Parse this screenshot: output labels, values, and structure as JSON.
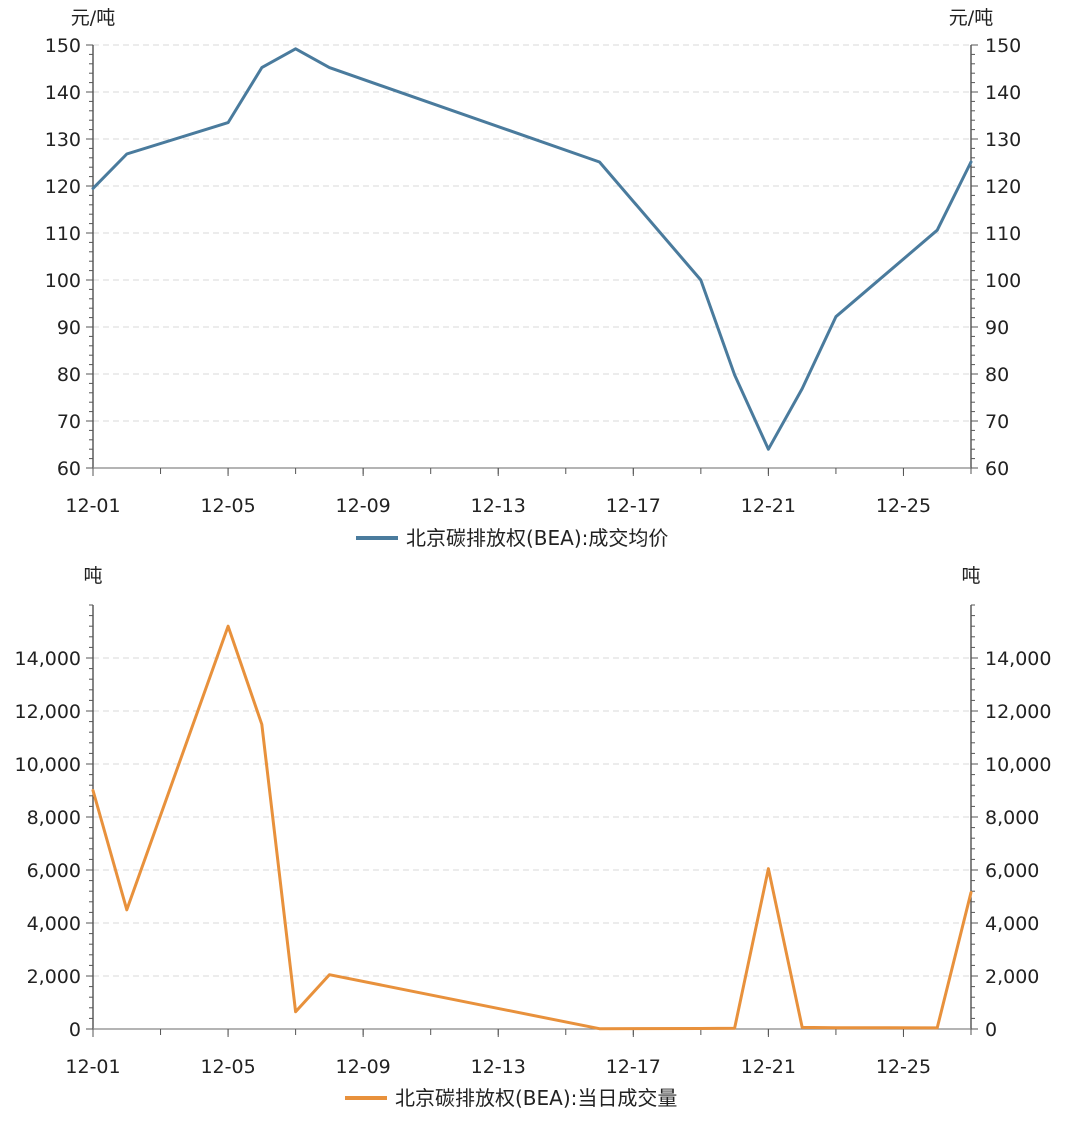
{
  "chart_data": [
    {
      "type": "line",
      "y_unit_left": "元/吨",
      "y_unit_right": "元/吨",
      "x": [
        "12-01",
        "12-02",
        "12-05",
        "12-06",
        "12-07",
        "12-08",
        "12-16",
        "12-19",
        "12-20",
        "12-21",
        "12-22",
        "12-23",
        "12-26",
        "12-27"
      ],
      "x_ticks": [
        "12-01",
        "12-05",
        "12-09",
        "12-13",
        "12-17",
        "12-21",
        "12-25"
      ],
      "x_range": [
        "12-01",
        "12-27"
      ],
      "ylim": [
        60,
        150
      ],
      "y_ticks": [
        "60",
        "70",
        "80",
        "90",
        "100",
        "110",
        "120",
        "130",
        "140",
        "150"
      ],
      "grid": true,
      "legend_position": "bottom-center",
      "series": [
        {
          "name": "北京碳排放权(BEA):成交均价",
          "color": "#4a7b9d",
          "values": [
            119.5,
            126.8,
            133.5,
            145.2,
            149.2,
            145.2,
            125.1,
            100.0,
            79.8,
            64.0,
            76.9,
            92.2,
            110.6,
            125.1
          ]
        }
      ]
    },
    {
      "type": "line",
      "y_unit_left": "吨",
      "y_unit_right": "吨",
      "x": [
        "12-01",
        "12-02",
        "12-05",
        "12-06",
        "12-07",
        "12-08",
        "12-16",
        "12-19",
        "12-20",
        "12-21",
        "12-22",
        "12-23",
        "12-26",
        "12-27"
      ],
      "x_ticks": [
        "12-01",
        "12-05",
        "12-09",
        "12-13",
        "12-17",
        "12-21",
        "12-25"
      ],
      "x_range": [
        "12-01",
        "12-27"
      ],
      "ylim": [
        0,
        16000
      ],
      "y_ticks": [
        "0",
        "2,000",
        "4,000",
        "6,000",
        "8,000",
        "10,000",
        "12,000",
        "14,000"
      ],
      "grid": true,
      "legend_position": "bottom-center",
      "series": [
        {
          "name": "北京碳排放权(BEA):当日成交量",
          "color": "#e8913c",
          "values": [
            9000,
            4500,
            15200,
            11500,
            650,
            2050,
            10,
            20,
            30,
            6050,
            60,
            50,
            40,
            5150
          ]
        }
      ]
    }
  ]
}
